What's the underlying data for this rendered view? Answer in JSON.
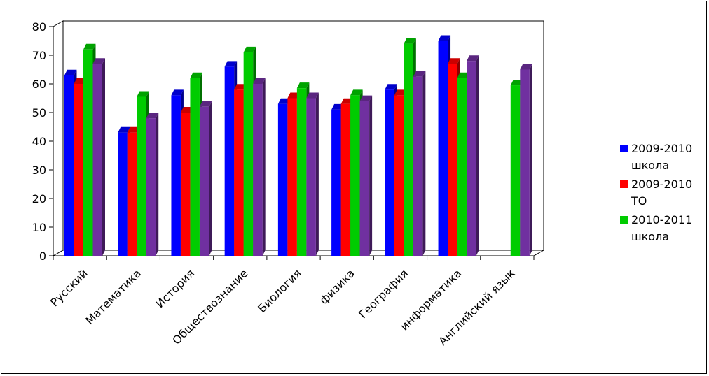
{
  "chart_data": {
    "type": "bar",
    "categories": [
      "Русский",
      "Математика",
      "История",
      "Обществознание",
      "Биология",
      "физика",
      "География",
      "информатика",
      "Английский язык"
    ],
    "series": [
      {
        "name": "2009-2010 школа",
        "color": "#0000ff",
        "values": [
          63,
          43,
          56,
          66,
          53,
          51,
          58,
          75,
          null
        ]
      },
      {
        "name": "2009-2010 ТО",
        "color": "#ff0000",
        "values": [
          60,
          43,
          50,
          58,
          55,
          53,
          56,
          67,
          null
        ]
      },
      {
        "name": "2010-2011 школа",
        "color": "#00cc00",
        "values": [
          72,
          55.5,
          62,
          71,
          58.5,
          56,
          74,
          62,
          59.5
        ]
      },
      {
        "name": "",
        "color": "#7030a0",
        "values": [
          67,
          48,
          52,
          60,
          55,
          54,
          62.5,
          68,
          65
        ]
      }
    ],
    "ylim": [
      0,
      80
    ],
    "yticks": [
      0,
      10,
      20,
      30,
      40,
      50,
      60,
      70,
      80
    ],
    "legend_position": "right",
    "grid": false
  }
}
